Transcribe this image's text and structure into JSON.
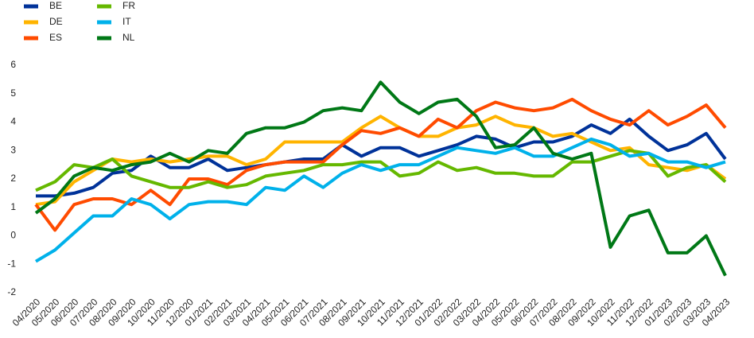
{
  "chart_data": {
    "type": "line",
    "categories": [
      "04/2020",
      "05/2020",
      "06/2020",
      "07/2020",
      "08/2020",
      "09/2020",
      "10/2020",
      "11/2020",
      "12/2020",
      "01/2021",
      "02/2021",
      "03/2021",
      "04/2021",
      "05/2021",
      "06/2021",
      "07/2021",
      "08/2021",
      "09/2021",
      "10/2021",
      "11/2021",
      "12/2021",
      "01/2022",
      "02/2022",
      "03/2022",
      "04/2022",
      "05/2022",
      "06/2022",
      "07/2022",
      "08/2022",
      "09/2022",
      "10/2022",
      "11/2022",
      "12/2022",
      "01/2023",
      "02/2023",
      "03/2023",
      "04/2023"
    ],
    "series": [
      {
        "name": "BE",
        "color": "#003299",
        "values": [
          1.4,
          1.4,
          1.5,
          1.7,
          2.2,
          2.3,
          2.8,
          2.4,
          2.4,
          2.7,
          2.3,
          2.4,
          2.5,
          2.6,
          2.7,
          2.7,
          3.2,
          2.8,
          3.1,
          3.1,
          2.8,
          3.0,
          3.2,
          3.5,
          3.4,
          3.1,
          3.3,
          3.3,
          3.5,
          3.9,
          3.6,
          4.1,
          3.5,
          3.0,
          3.2,
          3.6,
          2.7
        ]
      },
      {
        "name": "DE",
        "color": "#ffb400",
        "values": [
          1.1,
          1.2,
          1.9,
          2.3,
          2.7,
          2.6,
          2.7,
          2.6,
          2.7,
          2.8,
          2.8,
          2.5,
          2.7,
          3.3,
          3.3,
          3.3,
          3.3,
          3.8,
          4.2,
          3.8,
          3.5,
          3.5,
          3.8,
          3.9,
          4.2,
          3.9,
          3.8,
          3.5,
          3.6,
          3.3,
          3.0,
          3.1,
          2.5,
          2.4,
          2.3,
          2.5,
          2.0
        ]
      },
      {
        "name": "ES",
        "color": "#ff4b00",
        "values": [
          1.1,
          0.2,
          1.1,
          1.3,
          1.3,
          1.1,
          1.6,
          1.1,
          2.0,
          2.0,
          1.8,
          2.3,
          2.5,
          2.6,
          2.6,
          2.6,
          3.2,
          3.7,
          3.6,
          3.8,
          3.5,
          4.1,
          3.8,
          4.4,
          4.7,
          4.5,
          4.4,
          4.5,
          4.8,
          4.4,
          4.1,
          3.9,
          4.4,
          3.9,
          4.2,
          4.6,
          3.8
        ]
      },
      {
        "name": "FR",
        "color": "#65b800",
        "values": [
          1.6,
          1.9,
          2.5,
          2.4,
          2.7,
          2.1,
          1.9,
          1.7,
          1.7,
          1.9,
          1.7,
          1.8,
          2.1,
          2.2,
          2.3,
          2.5,
          2.5,
          2.6,
          2.6,
          2.1,
          2.2,
          2.6,
          2.3,
          2.4,
          2.2,
          2.2,
          2.1,
          2.1,
          2.6,
          2.6,
          2.8,
          3.0,
          2.9,
          2.1,
          2.4,
          2.5,
          1.9
        ]
      },
      {
        "name": "IT",
        "color": "#00b1ea",
        "values": [
          -0.9,
          -0.5,
          0.1,
          0.7,
          0.7,
          1.3,
          1.1,
          0.6,
          1.1,
          1.2,
          1.2,
          1.1,
          1.7,
          1.6,
          2.1,
          1.7,
          2.2,
          2.5,
          2.3,
          2.5,
          2.5,
          2.8,
          3.1,
          3.0,
          2.9,
          3.1,
          2.8,
          2.8,
          3.1,
          3.4,
          3.2,
          2.8,
          2.9,
          2.6,
          2.6,
          2.4,
          2.6
        ]
      },
      {
        "name": "NL",
        "color": "#007816",
        "values": [
          0.8,
          1.3,
          2.1,
          2.4,
          2.3,
          2.5,
          2.6,
          2.9,
          2.6,
          3.0,
          2.9,
          3.6,
          3.8,
          3.8,
          4.0,
          4.4,
          4.5,
          4.4,
          5.4,
          4.7,
          4.3,
          4.7,
          4.8,
          4.2,
          3.1,
          3.2,
          3.8,
          2.9,
          2.7,
          2.9,
          -0.4,
          0.7,
          0.9,
          -0.6,
          -0.6,
          0.0,
          -1.4
        ]
      }
    ],
    "ylim": [
      -2,
      6
    ],
    "yticks": [
      -2,
      -1,
      0,
      1,
      2,
      3,
      4,
      5,
      6
    ],
    "grid": false
  }
}
